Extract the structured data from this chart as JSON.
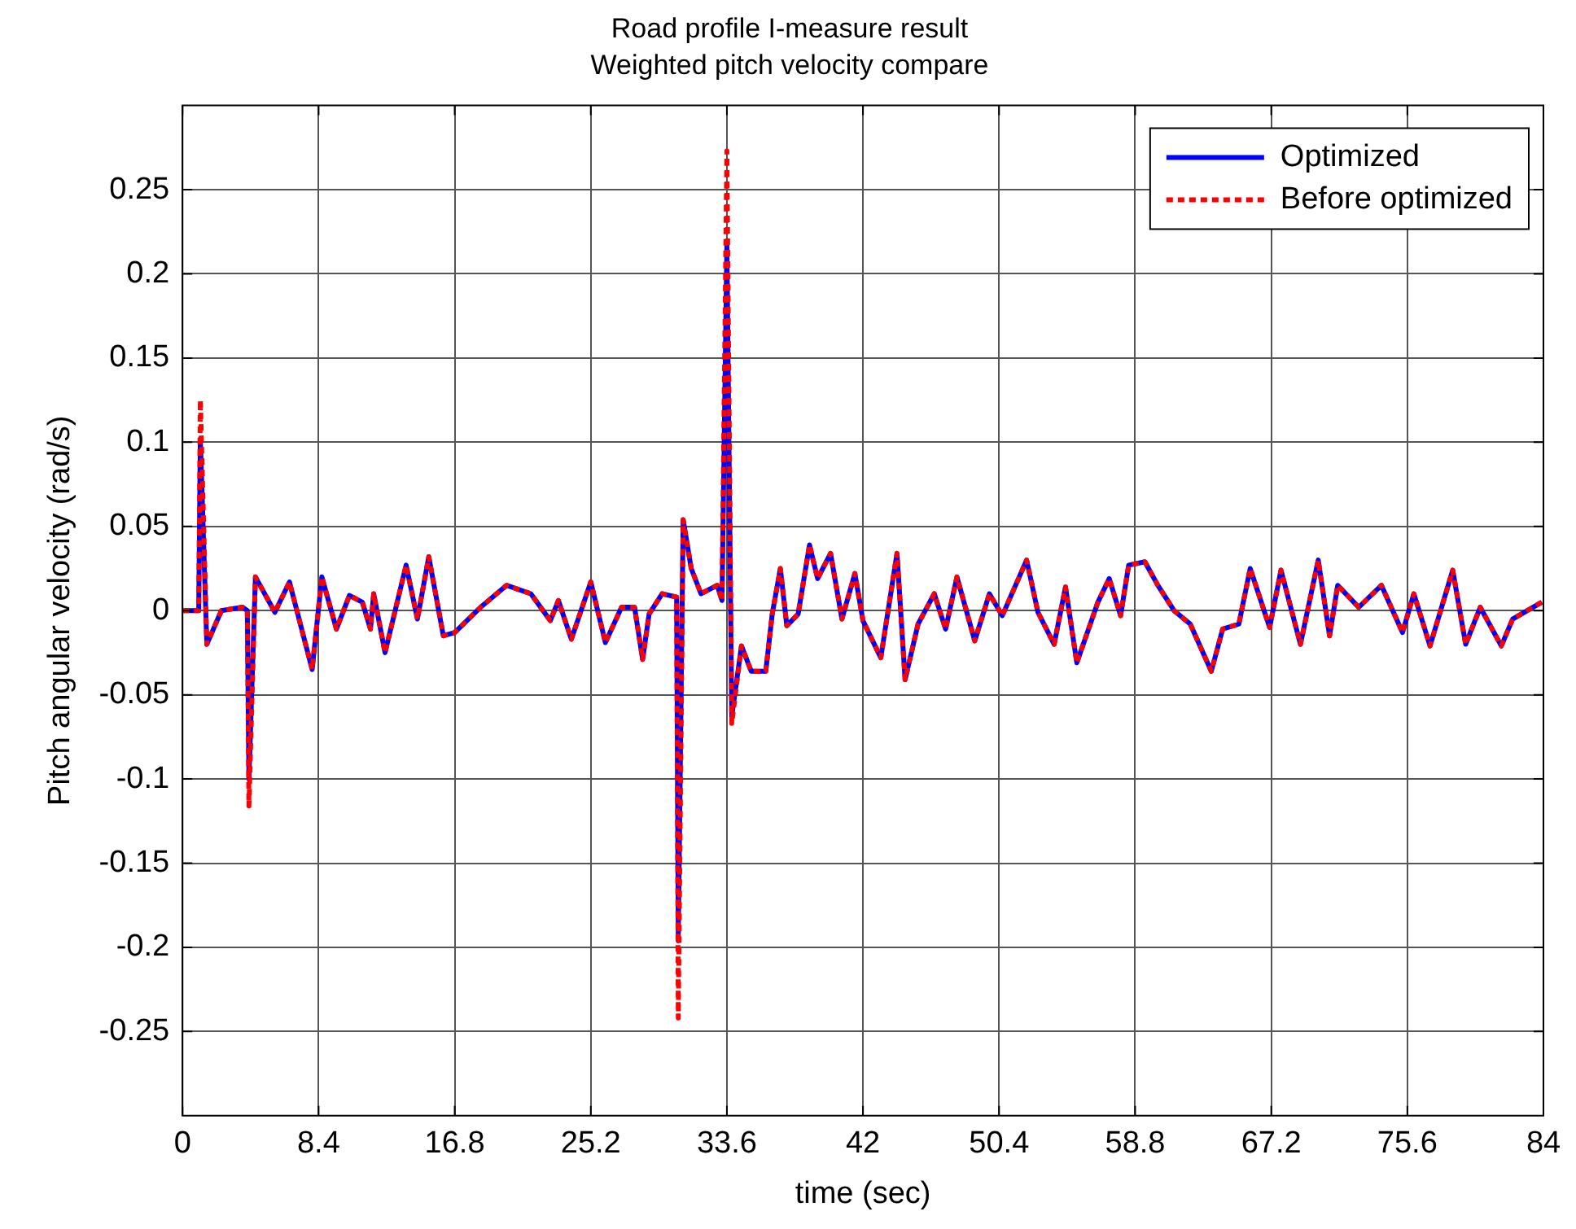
{
  "chart_data": {
    "type": "line",
    "title": "Road profile I-measure result",
    "subtitle": "Weighted pitch velocity compare",
    "xlabel": "time (sec)",
    "ylabel": "Pitch angular velocity (rad/s)",
    "x": [
      0,
      1.0,
      1.1,
      1.5,
      2.4,
      3.7,
      4.0,
      4.1,
      4.5,
      5.7,
      6.6,
      8.0,
      8.6,
      9.5,
      10.3,
      11.1,
      11.6,
      11.8,
      12.5,
      13.8,
      14.5,
      15.2,
      16.1,
      16.8,
      18.4,
      20.0,
      21.5,
      22.7,
      23.2,
      24.0,
      25.2,
      26.1,
      27.1,
      27.9,
      28.4,
      28.8,
      29.6,
      30.5,
      30.6,
      30.9,
      31.4,
      32.0,
      33.0,
      33.3,
      33.6,
      33.9,
      34.5,
      35.1,
      36.0,
      36.4,
      36.9,
      37.3,
      38.0,
      38.7,
      39.2,
      40.0,
      40.7,
      41.5,
      42.0,
      43.1,
      44.1,
      44.6,
      45.4,
      46.4,
      47.1,
      47.8,
      48.9,
      49.8,
      50.6,
      52.1,
      52.8,
      53.8,
      54.5,
      55.2,
      56.5,
      57.2,
      57.9,
      58.4,
      59.4,
      60.2,
      61.2,
      62.2,
      63.5,
      64.2,
      65.2,
      65.9,
      67.1,
      67.8,
      69.0,
      70.1,
      70.8,
      71.3,
      72.6,
      74.0,
      75.3,
      76.0,
      77.0,
      78.4,
      79.2,
      80.1,
      81.4,
      82.1,
      83.9
    ],
    "series": [
      {
        "name": "Optimized",
        "color": "#0000ff",
        "line_style": "solid",
        "values": [
          0,
          0,
          0.102,
          -0.02,
          0,
          0.002,
          0,
          -0.1,
          0.02,
          -0.001,
          0.017,
          -0.035,
          0.02,
          -0.011,
          0.009,
          0.005,
          -0.011,
          0.01,
          -0.025,
          0.027,
          -0.005,
          0.032,
          -0.015,
          -0.013,
          0.002,
          0.015,
          0.01,
          -0.006,
          0.006,
          -0.017,
          0.017,
          -0.019,
          0.002,
          0.002,
          -0.029,
          -0.002,
          0.01,
          0.008,
          -0.196,
          0.054,
          0.025,
          0.01,
          0.015,
          0.006,
          0.217,
          -0.063,
          -0.021,
          -0.036,
          -0.036,
          -0.002,
          0.025,
          -0.009,
          -0.002,
          0.039,
          0.019,
          0.034,
          -0.005,
          0.022,
          -0.006,
          -0.028,
          0.034,
          -0.041,
          -0.008,
          0.01,
          -0.011,
          0.02,
          -0.018,
          0.01,
          -0.003,
          0.03,
          -0.001,
          -0.02,
          0.014,
          -0.031,
          0.005,
          0.019,
          -0.003,
          0.027,
          0.029,
          0.015,
          0,
          -0.008,
          -0.036,
          -0.011,
          -0.008,
          0.025,
          -0.01,
          0.024,
          -0.02,
          0.03,
          -0.015,
          0.015,
          0.002,
          0.015,
          -0.013,
          0.01,
          -0.021,
          0.024,
          -0.02,
          0.002,
          -0.021,
          -0.005,
          0.005
        ]
      },
      {
        "name": "Before optimized",
        "color": "#ff0000",
        "line_style": "dotted",
        "values": [
          0,
          0,
          0.125,
          -0.02,
          0,
          0.002,
          0,
          -0.116,
          0.02,
          -0.001,
          0.017,
          -0.035,
          0.02,
          -0.011,
          0.009,
          0.005,
          -0.011,
          0.01,
          -0.025,
          0.027,
          -0.005,
          0.032,
          -0.015,
          -0.013,
          0.002,
          0.015,
          0.01,
          -0.006,
          0.006,
          -0.017,
          0.017,
          -0.019,
          0.002,
          0.002,
          -0.029,
          -0.002,
          0.01,
          0.008,
          -0.242,
          0.054,
          0.025,
          0.01,
          0.015,
          0.006,
          0.273,
          -0.067,
          -0.021,
          -0.036,
          -0.036,
          -0.002,
          0.025,
          -0.009,
          -0.002,
          0.039,
          0.019,
          0.034,
          -0.005,
          0.022,
          -0.006,
          -0.028,
          0.034,
          -0.041,
          -0.008,
          0.01,
          -0.011,
          0.02,
          -0.018,
          0.01,
          -0.003,
          0.03,
          -0.001,
          -0.02,
          0.014,
          -0.031,
          0.005,
          0.019,
          -0.003,
          0.027,
          0.029,
          0.015,
          0,
          -0.008,
          -0.036,
          -0.011,
          -0.008,
          0.025,
          -0.01,
          0.024,
          -0.02,
          0.03,
          -0.015,
          0.015,
          0.002,
          0.015,
          -0.013,
          0.01,
          -0.021,
          0.024,
          -0.02,
          0.002,
          -0.021,
          -0.005,
          0.005
        ]
      }
    ],
    "xlim": [
      0,
      84
    ],
    "xticks": [
      0,
      8.4,
      16.8,
      25.2,
      33.6,
      42,
      50.4,
      58.8,
      67.2,
      75.6,
      84
    ],
    "ylim": [
      -0.3,
      0.3
    ],
    "yticks": [
      -0.25,
      -0.2,
      -0.15,
      -0.1,
      -0.05,
      0,
      0.05,
      0.1,
      0.15,
      0.2,
      0.25
    ],
    "grid": true,
    "legend": "top right",
    "marker": "none"
  }
}
